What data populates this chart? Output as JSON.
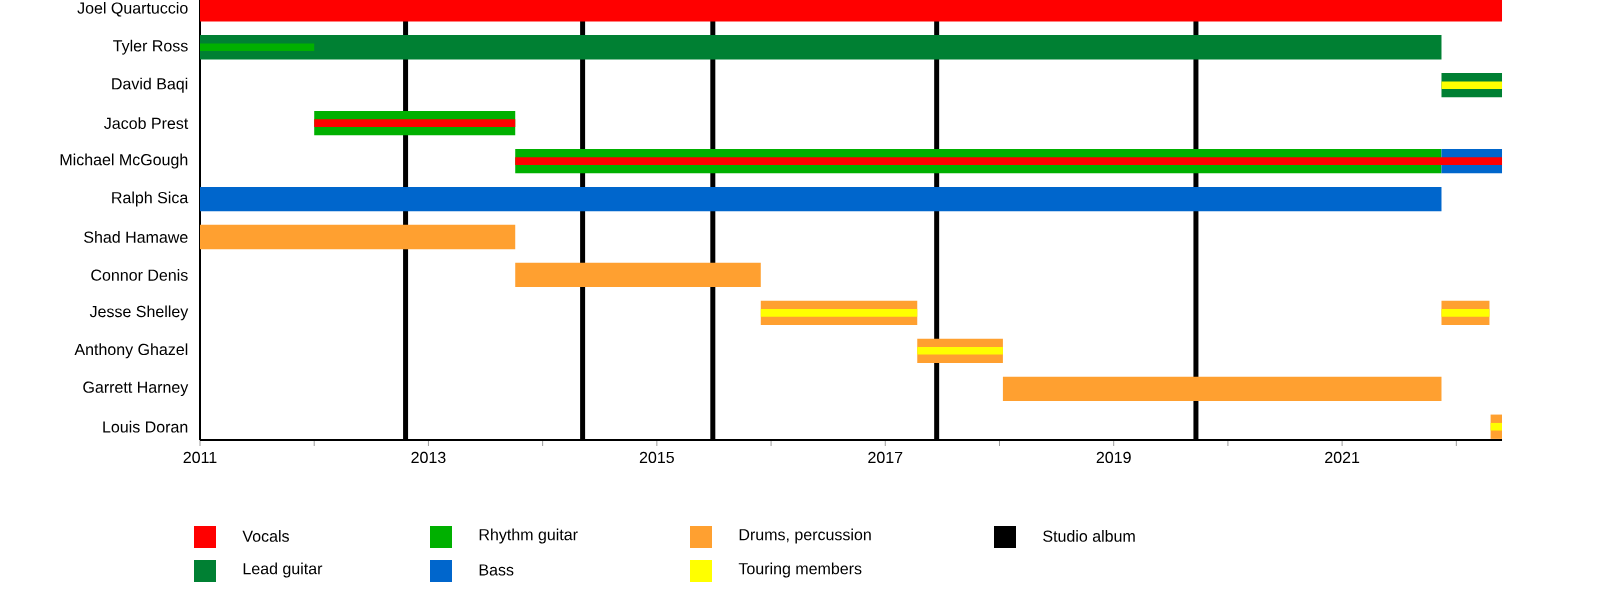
{
  "chart_data": {
    "type": "bar",
    "orientation": "horizontal",
    "legend": "bottom",
    "categories": [
      "Joel Quartuccio",
      "Tyler Ross",
      "David Baqi",
      "Jacob Prest",
      "Michael McGough",
      "Ralph Sica",
      "Shad Hamawe",
      "Connor Denis",
      "Jesse Shelley",
      "Anthony Ghazel",
      "Garrett Harney",
      "Louis Doran"
    ],
    "xlim": [
      2011,
      2022.4
    ],
    "xticks": [
      2011,
      {
        "value": 2012,
        "label": null
      },
      2013,
      {
        "value": 2014,
        "label": null
      },
      2015,
      {
        "value": 2016,
        "label": null
      },
      2017,
      {
        "value": 2018,
        "label": null
      },
      2019,
      {
        "value": 2020,
        "label": null
      },
      2021,
      {
        "value": 2022,
        "label": null
      }
    ],
    "series": [
      {
        "name": "Vocals",
        "color": "#ff0000",
        "base": [
          2011,
          null,
          null,
          null,
          null,
          null,
          null,
          null,
          null,
          null,
          null,
          null
        ],
        "values": [
          11.4,
          null,
          null,
          null,
          null,
          null,
          null,
          null,
          null,
          null,
          null,
          null
        ]
      },
      {
        "name": "Lead guitar",
        "color": "#008033",
        "base": [
          null,
          2011,
          2021.87,
          null,
          null,
          null,
          null,
          null,
          null,
          null,
          null,
          null
        ],
        "values": [
          null,
          10.87,
          0.53,
          null,
          null,
          null,
          null,
          null,
          null,
          null,
          null,
          null
        ]
      },
      {
        "name": "Rhythm guitar",
        "color": "#00b000",
        "base": [
          null,
          null,
          null,
          2012.0,
          2013.76,
          null,
          null,
          null,
          null,
          null,
          null,
          null
        ],
        "values": [
          null,
          null,
          null,
          1.76,
          8.11,
          null,
          null,
          null,
          null,
          null,
          null,
          null
        ]
      },
      {
        "name": "Bass",
        "color": "#0066cc",
        "base": [
          null,
          null,
          null,
          null,
          2021.87,
          2011,
          null,
          null,
          null,
          null,
          null,
          null
        ],
        "values": [
          null,
          null,
          null,
          null,
          0.53,
          10.87,
          null,
          null,
          null,
          null,
          null,
          null
        ]
      },
      {
        "name": "Drums, percussion",
        "color": "#ffa030",
        "base": [
          null,
          null,
          null,
          null,
          null,
          null,
          2011,
          2013.76,
          2015.91,
          2017.28,
          2018.03,
          2022.3
        ],
        "values": [
          null,
          null,
          null,
          null,
          null,
          null,
          2.76,
          2.15,
          1.37,
          0.75,
          3.84,
          0.1
        ]
      },
      {
        "name": "Touring members",
        "color": "#ffff00",
        "base": [
          null,
          null,
          2021.87,
          null,
          null,
          null,
          null,
          null,
          2015.91,
          2017.28,
          null,
          2022.3
        ],
        "values": [
          null,
          null,
          0.53,
          null,
          null,
          null,
          null,
          null,
          1.37,
          0.75,
          null,
          0.1
        ]
      },
      {
        "color": "#ffa030",
        "base": [
          null,
          null,
          null,
          null,
          null,
          null,
          null,
          null,
          2021.87,
          null,
          null,
          null
        ],
        "values": [
          null,
          null,
          null,
          null,
          null,
          null,
          null,
          null,
          0.42,
          null,
          null,
          null
        ]
      },
      {
        "color": "#ffff00",
        "base": [
          null,
          null,
          null,
          null,
          null,
          null,
          null,
          null,
          2021.87,
          null,
          null,
          null
        ],
        "values": [
          null,
          null,
          null,
          null,
          null,
          null,
          null,
          null,
          0.42,
          null,
          null,
          null
        ]
      },
      {
        "color": "#00b000",
        "base": [
          null,
          2011,
          null,
          null,
          null,
          null,
          null,
          null,
          null,
          null,
          null,
          null
        ],
        "values": [
          null,
          1.0,
          null,
          null,
          null,
          null,
          null,
          null,
          null,
          null,
          null,
          null
        ]
      },
      {
        "color": "#ff0000",
        "base": [
          null,
          null,
          null,
          2012.0,
          2013.76,
          null,
          null,
          null,
          null,
          null,
          null,
          null
        ],
        "values": [
          null,
          null,
          null,
          1.76,
          8.64,
          null,
          null,
          null,
          null,
          null,
          null,
          null
        ]
      }
    ],
    "ref_lines": [
      {
        "axis": "x",
        "value": 2012.8,
        "color": "#000000",
        "label": "Studio album"
      },
      {
        "axis": "x",
        "value": 2014.35,
        "color": "#000000"
      },
      {
        "axis": "x",
        "value": 2015.49,
        "color": "#000000"
      },
      {
        "axis": "x",
        "value": 2017.45,
        "color": "#000000"
      },
      {
        "axis": "x",
        "value": 2019.72,
        "color": "#000000"
      }
    ]
  }
}
